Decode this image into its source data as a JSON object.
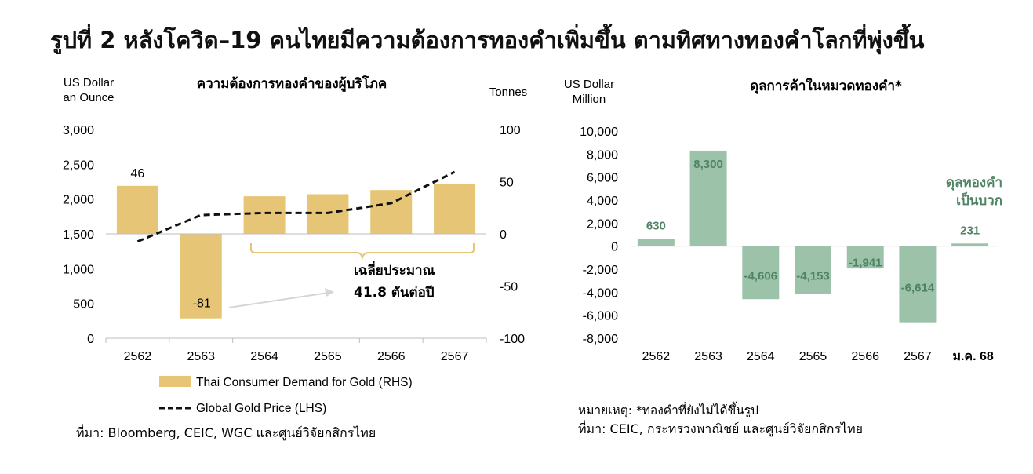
{
  "figure_title": "รูปที่ 2 หลังโควิด–19 คนไทยมีความต้องการทองคำเพิ่มขึ้น ตามทิศทางทองคำโลกที่พุ่งขึ้น",
  "colors": {
    "demand_bar": "#E6C676",
    "trade_bar": "#9DC2AA",
    "trade_label": "#4E8463",
    "line": "#111111",
    "brace": "#E6C676"
  },
  "chart_data": [
    {
      "type": "bar",
      "title": "ความต้องการทองคำของผู้บริโภค",
      "left_axis_label": [
        "US Dollar",
        "an Ounce"
      ],
      "right_axis_label": "Tonnes",
      "left_ticks": [
        "3,000",
        "2,500",
        "2,000",
        "1,500",
        "1,000",
        "500",
        "0"
      ],
      "right_ticks": [
        "100",
        "50",
        "0",
        "-50",
        "-100"
      ],
      "ylim_left": [
        0,
        3000
      ],
      "ylim_right": [
        -100,
        100
      ],
      "categories": [
        "2562",
        "2563",
        "2564",
        "2565",
        "2566",
        "2567"
      ],
      "series": [
        {
          "name": "Thai Consumer Demand for Gold (RHS)",
          "type": "bar",
          "axis": "right",
          "values": [
            46,
            -81,
            36,
            38,
            42,
            48
          ]
        },
        {
          "name": "Global Gold Price (LHS)",
          "type": "line",
          "axis": "left",
          "style": "dashed",
          "values": [
            1390,
            1770,
            1800,
            1800,
            1940,
            2390
          ]
        }
      ],
      "data_labels": [
        "46",
        "-81"
      ],
      "annotation": [
        "เฉลี่ยประมาณ",
        "41.8 ตันต่อปี"
      ],
      "legend_position": "bottom",
      "grid": false
    },
    {
      "type": "bar",
      "title": "ดุลการค้าในหมวดทองคำ*",
      "left_axis_label": [
        "US Dollar",
        "Million"
      ],
      "ticks": [
        "10,000",
        "8,000",
        "6,000",
        "4,000",
        "2,000",
        "0",
        "-2,000",
        "-4,000",
        "-6,000",
        "-8,000"
      ],
      "ylim": [
        -8000,
        10000
      ],
      "categories": [
        "2562",
        "2563",
        "2564",
        "2565",
        "2566",
        "2567",
        "ม.ค. 68"
      ],
      "values": [
        630,
        8300,
        -4606,
        -4153,
        -1941,
        -6614,
        231
      ],
      "value_labels": [
        "630",
        "8,300",
        "-4,606",
        "-4,153",
        "-1,941",
        "-6,614",
        "231"
      ],
      "annotation": [
        "ดุลทองคำ",
        "เป็นบวก"
      ],
      "grid": false
    }
  ],
  "footnotes": {
    "left_source": "ที่มา: Bloomberg, CEIC, WGC และศูนย์วิจัยกสิกรไทย",
    "right_note": "หมายเหตุ: *ทองคำที่ยังไม่ได้ขึ้นรูป",
    "right_source": "ที่มา: CEIC, กระทรวงพาณิชย์ และศูนย์วิจัยกสิกรไทย"
  }
}
